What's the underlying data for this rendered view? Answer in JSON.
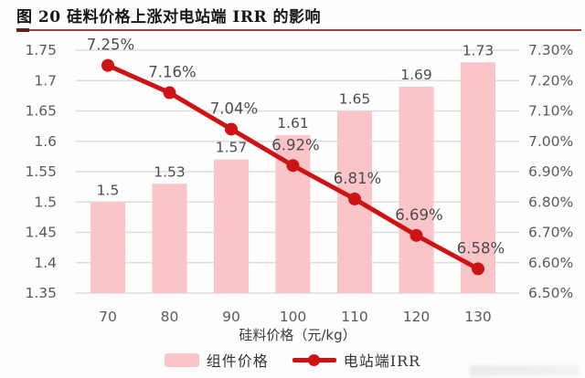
{
  "title": "图 20 硅料价格上涨对电站端 IRR 的影响",
  "colors": {
    "bar": "#f9c5c9",
    "line": "#ce1314",
    "grid": "#dddddd",
    "tick_text": "#5a5a5a",
    "data_label": "#4d4d4d",
    "rule": "#a04240",
    "rule_cap": "#63201e"
  },
  "chart_data": {
    "type": "bar+line",
    "categories": [
      "70",
      "80",
      "90",
      "100",
      "110",
      "120",
      "130"
    ],
    "series": [
      {
        "name": "组件价格",
        "type": "bar",
        "axis": "left",
        "values": [
          1.5,
          1.53,
          1.57,
          1.61,
          1.65,
          1.69,
          1.73
        ],
        "labels": [
          "1.5",
          "1.53",
          "1.57",
          "1.61",
          "1.65",
          "1.69",
          "1.73"
        ]
      },
      {
        "name": "电站端IRR",
        "type": "line",
        "axis": "right",
        "values": [
          7.25,
          7.16,
          7.04,
          6.92,
          6.81,
          6.69,
          6.58
        ],
        "labels": [
          "7.25%",
          "7.16%",
          "7.04%",
          "6.92%",
          "6.81%",
          "6.69%",
          "6.58%"
        ]
      }
    ],
    "xlabel": "硅料价格（元/kg）",
    "left_axis": {
      "min": 1.35,
      "max": 1.75,
      "step": 0.05,
      "ticks": [
        "1.35",
        "1.4",
        "1.45",
        "1.5",
        "1.55",
        "1.6",
        "1.65",
        "1.7",
        "1.75"
      ]
    },
    "right_axis": {
      "min": 6.5,
      "max": 7.3,
      "step": 0.1,
      "ticks": [
        "6.50%",
        "6.60%",
        "6.70%",
        "6.80%",
        "6.90%",
        "7.00%",
        "7.10%",
        "7.20%",
        "7.30%"
      ]
    },
    "grid": true,
    "legend_position": "bottom"
  },
  "legend": {
    "items": [
      {
        "label": "组件价格",
        "marker": "bar"
      },
      {
        "label": "电站端IRR",
        "marker": "line"
      }
    ]
  }
}
